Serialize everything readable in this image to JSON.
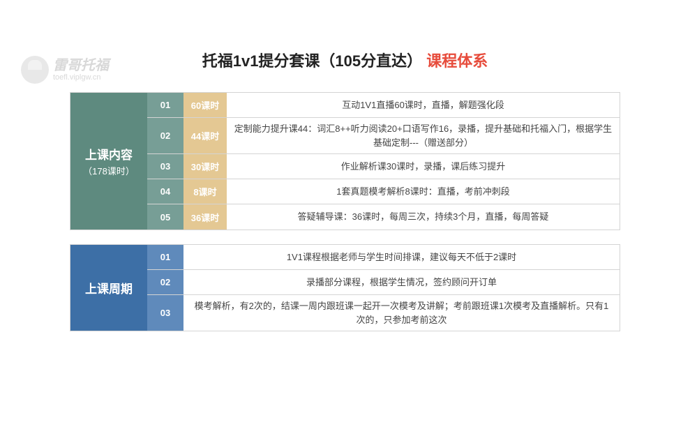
{
  "logo": {
    "main": "雷哥托福",
    "sub": "toefl.viplgw.cn"
  },
  "title": {
    "black": "托福1v1提分套课（105分直达）",
    "red": "课程体系"
  },
  "colors": {
    "table1_side": "#5e8a7f",
    "table1_num": "#779e96",
    "table1_hours": "#e4c893",
    "table2_side": "#3d6fa6",
    "table2_num": "#5f8abb",
    "border": "#d4d4d4",
    "title_red": "#e74c3c"
  },
  "table1": {
    "sideMain": "上课内容",
    "sideSub": "（178课时）",
    "rows": [
      {
        "num": "01",
        "hours": "60课时",
        "desc": "互动1V1直播60课时，直播，解题强化段"
      },
      {
        "num": "02",
        "hours": "44课时",
        "desc": "定制能力提升课44：词汇8++听力阅读20+口语写作16，录播，提升基础和托福入门，根据学生基础定制---（赠送部分）"
      },
      {
        "num": "03",
        "hours": "30课时",
        "desc": "作业解析课30课时，录播，课后练习提升"
      },
      {
        "num": "04",
        "hours": "8课时",
        "desc": "1套真题模考解析8课时：直播，考前冲刺段"
      },
      {
        "num": "05",
        "hours": "36课时",
        "desc": "答疑辅导课：36课时，每周三次，持续3个月，直播，每周答疑"
      }
    ]
  },
  "table2": {
    "sideMain": "上课周期",
    "rows": [
      {
        "num": "01",
        "desc": "1V1课程根据老师与学生时间排课，建议每天不低于2课时"
      },
      {
        "num": "02",
        "desc": "录播部分课程，根据学生情况，签约顾问开订单"
      },
      {
        "num": "03",
        "desc": "模考解析，有2次的，结课一周内跟班课一起开一次模考及讲解；考前跟班课1次模考及直播解析。只有1次的，只参加考前这次"
      }
    ]
  }
}
